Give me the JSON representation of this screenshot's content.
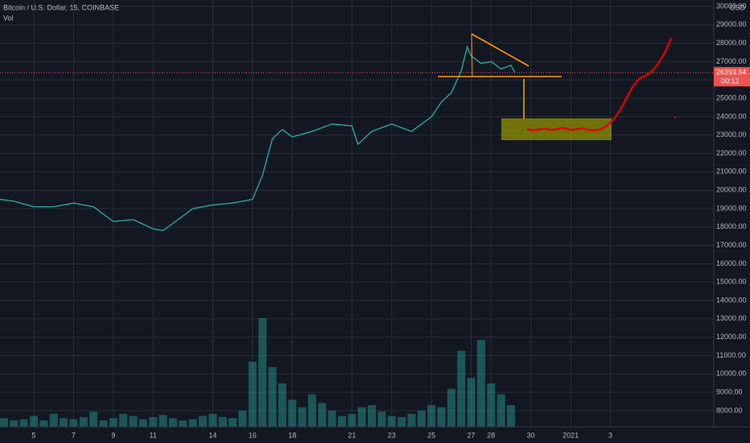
{
  "chart_data": {
    "type": "line",
    "title": "Bitcoin / U.S. Dollar, 15, COINBASE",
    "currency": "USD",
    "x": [
      3.3,
      4,
      5,
      6,
      7,
      8,
      9,
      10,
      11,
      11.5,
      12,
      13,
      14,
      15,
      16,
      16.5,
      17,
      17.5,
      18,
      19,
      20,
      21,
      21.3,
      22,
      23,
      24,
      25,
      25.5,
      26,
      26.5,
      26.8,
      27,
      27.5,
      28,
      28.5,
      29,
      29.2
    ],
    "values": [
      19500,
      19400,
      19100,
      19100,
      19300,
      19100,
      18300,
      18400,
      17900,
      17800,
      18200,
      19000,
      19200,
      19300,
      19500,
      20800,
      22800,
      23300,
      22900,
      23200,
      23600,
      23500,
      22500,
      23200,
      23600,
      23200,
      24000,
      24800,
      25300,
      26500,
      27800,
      27300,
      26900,
      27000,
      26600,
      26800,
      26390
    ],
    "color": "#26a69a",
    "last_price": 26393.64,
    "timer": "00:12",
    "volume": {
      "name": "Vol",
      "color": "#26a69a",
      "x": [
        3.5,
        4,
        4.5,
        5,
        5.5,
        6,
        6.5,
        7,
        7.5,
        8,
        8.5,
        9,
        9.5,
        10,
        10.5,
        11,
        11.5,
        12,
        12.5,
        13,
        13.5,
        14,
        14.5,
        15,
        15.5,
        16,
        16.5,
        17,
        17.5,
        18,
        18.5,
        19,
        19.5,
        20,
        20.5,
        21,
        21.5,
        22,
        22.5,
        23,
        23.5,
        24,
        24.5,
        25,
        25.5,
        26,
        26.5,
        27,
        27.5,
        28,
        28.5,
        29
      ],
      "values": [
        8,
        6,
        7,
        10,
        6,
        12,
        8,
        7,
        9,
        14,
        6,
        8,
        12,
        10,
        7,
        9,
        11,
        8,
        6,
        7,
        10,
        12,
        9,
        8,
        15,
        60,
        100,
        55,
        40,
        25,
        18,
        30,
        22,
        15,
        10,
        12,
        18,
        20,
        14,
        10,
        9,
        12,
        15,
        20,
        18,
        35,
        70,
        45,
        80,
        40,
        30,
        20
      ],
      "axis": "y2"
    },
    "y2lim": [
      0,
      100
    ],
    "xlim": [
      3.3,
      39.2
    ],
    "xticks": [
      5,
      7,
      9,
      11,
      14,
      16,
      18,
      21,
      23,
      25,
      27,
      28,
      30,
      {
        "value": 32,
        "label": "2021"
      },
      {
        "value": 34,
        "label": "3"
      }
    ],
    "ylim": [
      7120,
      30350
    ],
    "yticks": [
      {
        "value": 8000,
        "label": "8000.00"
      },
      {
        "value": 9000,
        "label": "9000.00"
      },
      {
        "value": 10000,
        "label": "10000.00"
      },
      {
        "value": 11000,
        "label": "11000.00"
      },
      {
        "value": 12000,
        "label": "12000.00"
      },
      {
        "value": 13000,
        "label": "13000.00"
      },
      {
        "value": 14000,
        "label": "14000.00"
      },
      {
        "value": 15000,
        "label": "15000.00"
      },
      {
        "value": 16000,
        "label": "16000.00"
      },
      {
        "value": 17000,
        "label": "17000.00"
      },
      {
        "value": 18000,
        "label": "18000.00"
      },
      {
        "value": 19000,
        "label": "19000.00"
      },
      {
        "value": 20000,
        "label": "20000.00"
      },
      {
        "value": 21000,
        "label": "21000.00"
      },
      {
        "value": 22000,
        "label": "22000.00"
      },
      {
        "value": 23000,
        "label": "23000.00"
      },
      {
        "value": 24000,
        "label": "24000.00"
      },
      {
        "value": 25000,
        "label": "25000.00"
      },
      {
        "value": 26000,
        "label": "26000.00"
      },
      {
        "value": 27000,
        "label": "27000.00"
      },
      {
        "value": 28000,
        "label": "28000.00"
      },
      {
        "value": 29000,
        "label": "29000.00"
      },
      {
        "value": 30000,
        "label": "30000.00"
      }
    ],
    "grid": true
  }
}
